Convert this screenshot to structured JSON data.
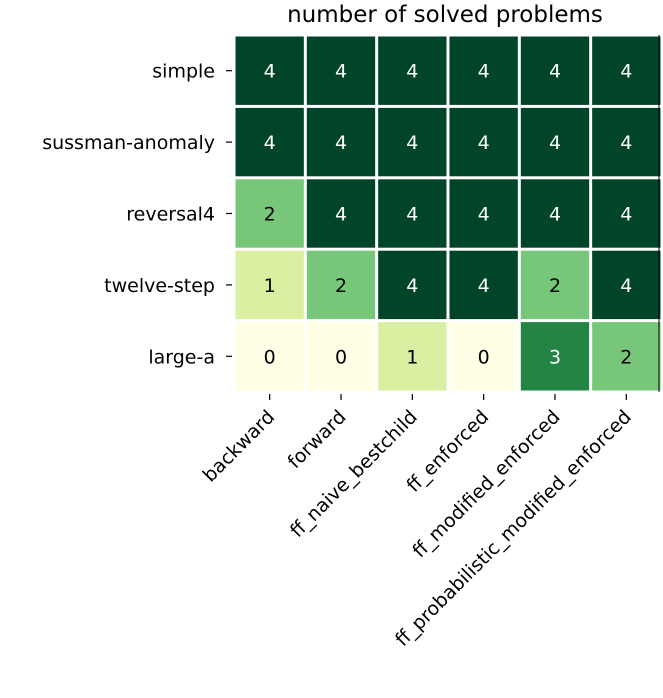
{
  "chart_data": {
    "type": "heatmap",
    "title": "number of solved problems",
    "rows": [
      "simple",
      "sussman-anomaly",
      "reversal4",
      "twelve-step",
      "large-a"
    ],
    "columns": [
      "backward",
      "forward",
      "ff_naive_bestchild",
      "ff_enforced",
      "ff_modified_enforced",
      "ff_probabilistic_modified_enforced"
    ],
    "values": [
      [
        4,
        4,
        4,
        4,
        4,
        4
      ],
      [
        4,
        4,
        4,
        4,
        4,
        4
      ],
      [
        2,
        4,
        4,
        4,
        4,
        4
      ],
      [
        1,
        2,
        4,
        4,
        2,
        4
      ],
      [
        0,
        0,
        1,
        0,
        3,
        2
      ]
    ],
    "value_range": [
      0,
      4
    ],
    "colormap": "YlGn",
    "color_scale": {
      "0": "#ffffe5",
      "1": "#d9f0a3",
      "2": "#78c679",
      "3": "#238443",
      "4": "#004529"
    },
    "text_colors": {
      "dark": "#ffffff",
      "light": "#000000"
    },
    "grid": false,
    "legend": "none"
  }
}
